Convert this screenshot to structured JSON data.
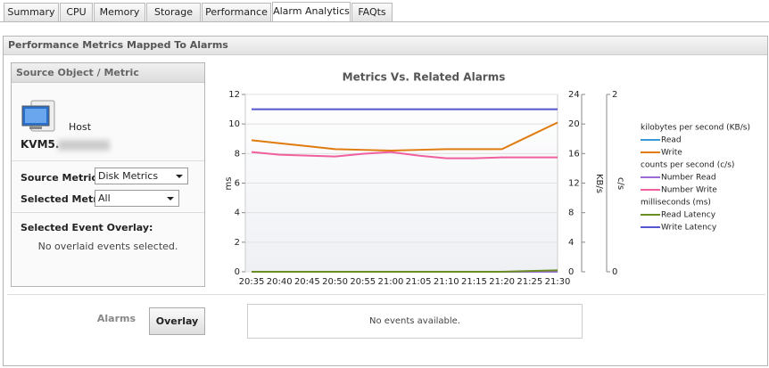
{
  "tabs": [
    "Summary",
    "CPU",
    "Memory",
    "Storage",
    "Performance",
    "Alarm Analytics",
    "FAQts"
  ],
  "panel": {
    "title": "Performance Metrics Mapped To Alarms",
    "source": {
      "title": "Source Object / Metric",
      "object_type": "Host",
      "object_name": "KVM5.",
      "source_metric_label": "Source Metric:",
      "source_metric_value": "Disk Metrics",
      "selected_metric_label": "Selected Metric:",
      "selected_metric_value": "All",
      "overlay_label": "Selected Event Overlay:",
      "overlay_empty": "No overlaid events selected."
    },
    "alarms": {
      "label": "Alarms",
      "button": "Overlay",
      "empty": "No events available."
    }
  },
  "chart_data": {
    "type": "line",
    "title": "Metrics Vs. Related Alarms",
    "categories": [
      "20:35",
      "20:40",
      "20:45",
      "20:50",
      "20:55",
      "21:00",
      "21:05",
      "21:10",
      "21:15",
      "21:20",
      "21:25",
      "21:30"
    ],
    "ylabel": "ms",
    "ylim": [
      0,
      12
    ],
    "yticks": [
      0,
      2,
      4,
      6,
      8,
      10,
      12
    ],
    "y2label": "KB/s",
    "y2lim": [
      0,
      24
    ],
    "y2ticks": [
      0,
      4,
      8,
      12,
      16,
      20,
      24
    ],
    "y3label": "c/s",
    "y3lim": [
      0,
      2
    ],
    "y3ticks": [
      0,
      2
    ],
    "grid": true,
    "legend_groups": [
      {
        "title": "kilobytes per second (KB/s)",
        "series": [
          {
            "name": "Read",
            "color": "#3a9ad9",
            "axis": "y2",
            "values": [
              0,
              0,
              0,
              0,
              0,
              0,
              0,
              0,
              0,
              0,
              0,
              0
            ]
          },
          {
            "name": "Write",
            "color": "#e07b10",
            "axis": "y2",
            "values": [
              17.8,
              17.4,
              17.0,
              16.6,
              16.5,
              16.4,
              16.5,
              16.6,
              16.6,
              16.6,
              18.4,
              20.2
            ]
          }
        ]
      },
      {
        "title": "counts per second (c/s)",
        "series": [
          {
            "name": "Number Read",
            "color": "#9b6bd6",
            "axis": "y3",
            "values": [
              0,
              0,
              0,
              0,
              0,
              0,
              0,
              0,
              0,
              0,
              0,
              0
            ]
          },
          {
            "name": "Number Write",
            "color": "#f0609e",
            "axis": "y3",
            "values": [
              1.35,
              1.32,
              1.31,
              1.3,
              1.33,
              1.35,
              1.31,
              1.28,
              1.28,
              1.29,
              1.29,
              1.29
            ]
          }
        ]
      },
      {
        "title": "milliseconds (ms)",
        "series": [
          {
            "name": "Read Latency",
            "color": "#6b8e23",
            "axis": "y",
            "values": [
              0,
              0,
              0,
              0,
              0,
              0,
              0,
              0,
              0,
              0,
              0.05,
              0.1
            ]
          },
          {
            "name": "Write Latency",
            "color": "#5555d0",
            "axis": "y",
            "values": [
              11,
              11,
              11,
              11,
              11,
              11,
              11,
              11,
              11,
              11,
              11,
              11
            ]
          }
        ]
      }
    ]
  }
}
